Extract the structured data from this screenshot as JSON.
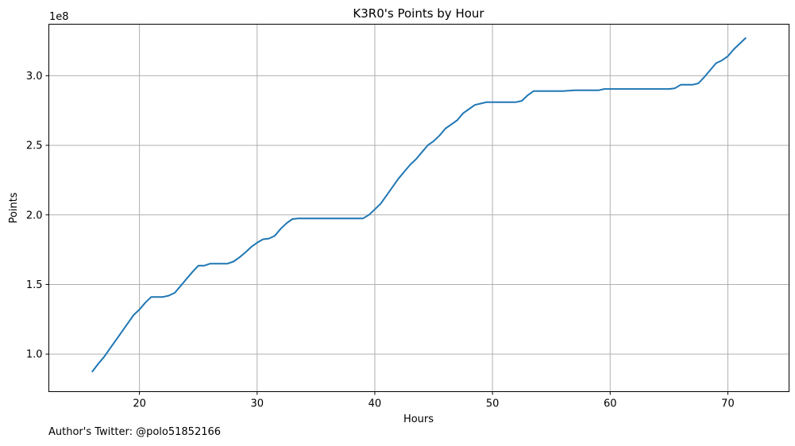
{
  "chart_data": {
    "type": "line",
    "title": "K3R0's Points by Hour",
    "xlabel": "Hours",
    "ylabel": "Points",
    "y_offset_label": "1e8",
    "xlim": [
      12.3,
      75.2
    ],
    "ylim": [
      73000000,
      337000000
    ],
    "x_ticks": [
      20,
      30,
      40,
      50,
      60,
      70
    ],
    "x_tick_labels": [
      "20",
      "30",
      "40",
      "50",
      "60",
      "70"
    ],
    "y_ticks": [
      100000000,
      150000000,
      200000000,
      250000000,
      300000000
    ],
    "y_tick_labels": [
      "1.0",
      "1.5",
      "2.0",
      "2.5",
      "3.0"
    ],
    "grid": true,
    "line_color": "#1f77b4",
    "series": [
      {
        "x": [
          16.0,
          16.5,
          17.0,
          17.5,
          18.0,
          18.5,
          19.0,
          19.5,
          20.0,
          20.5,
          21.0,
          21.5,
          22.0,
          22.5,
          23.0,
          23.5,
          24.0,
          24.5,
          25.0,
          25.5,
          26.0,
          26.5,
          27.0,
          27.5,
          28.0,
          28.5,
          29.0,
          29.5,
          30.0,
          30.5,
          31.0,
          31.5,
          32.0,
          32.5,
          33.0,
          33.5,
          34.0,
          36.0,
          38.0,
          39.0,
          39.5,
          40.0,
          40.5,
          41.0,
          41.5,
          42.0,
          42.5,
          43.0,
          43.5,
          44.0,
          44.5,
          45.0,
          45.5,
          46.0,
          46.5,
          47.0,
          47.5,
          48.0,
          48.5,
          49.0,
          49.5,
          50.0,
          51.0,
          52.0,
          52.5,
          53.0,
          53.5,
          54.0,
          55.0,
          56.0,
          57.0,
          58.0,
          59.0,
          59.5,
          60.0,
          61.0,
          62.0,
          63.0,
          64.0,
          65.0,
          65.5,
          66.0,
          66.5,
          67.0,
          67.5,
          68.0,
          68.5,
          69.0,
          69.5,
          70.0,
          70.5,
          71.0,
          71.5
        ],
        "y": [
          87500000,
          93000000,
          98000000,
          104000000,
          110000000,
          116000000,
          122000000,
          128000000,
          132000000,
          137000000,
          141000000,
          141000000,
          141000000,
          142000000,
          144000000,
          149000000,
          154000000,
          159000000,
          163500000,
          163500000,
          165000000,
          165000000,
          165000000,
          165000000,
          166500000,
          169500000,
          173000000,
          177000000,
          180000000,
          182500000,
          183000000,
          185000000,
          190000000,
          194000000,
          197000000,
          197500000,
          197500000,
          197500000,
          197500000,
          197500000,
          200000000,
          204000000,
          208000000,
          214000000,
          220000000,
          226000000,
          231000000,
          236000000,
          240000000,
          245000000,
          250000000,
          253000000,
          257000000,
          262000000,
          265000000,
          268000000,
          273000000,
          276000000,
          279000000,
          280000000,
          281000000,
          281000000,
          281000000,
          281000000,
          282000000,
          286000000,
          289000000,
          289000000,
          289000000,
          289000000,
          289500000,
          289500000,
          289500000,
          290500000,
          290500000,
          290500000,
          290500000,
          290500000,
          290500000,
          290500000,
          291000000,
          293500000,
          293500000,
          293500000,
          294500000,
          299000000,
          304000000,
          309000000,
          311000000,
          314000000,
          319000000,
          323000000,
          327000000
        ]
      }
    ]
  },
  "footnote": "Author's Twitter: @polo51852166"
}
